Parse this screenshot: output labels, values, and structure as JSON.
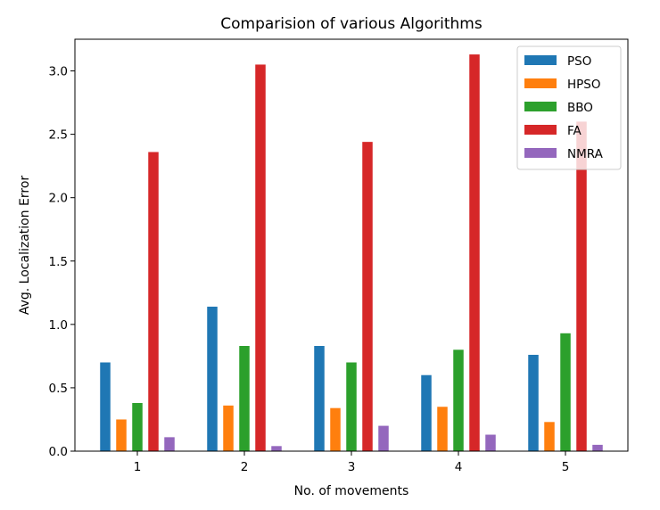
{
  "chart_data": {
    "type": "bar",
    "title": "Comparision of various Algorithms",
    "xlabel": "No. of movements",
    "ylabel": "Avg. Localization Error",
    "categories": [
      "1",
      "2",
      "3",
      "4",
      "5"
    ],
    "ylim": [
      0,
      3.25
    ],
    "yticks": [
      "0.0",
      "0.5",
      "1.0",
      "1.5",
      "2.0",
      "2.5",
      "3.0"
    ],
    "legend_position": "top-right",
    "grid": false,
    "series": [
      {
        "name": "PSO",
        "color": "#1f77b4",
        "values": [
          0.7,
          1.14,
          0.83,
          0.6,
          0.76
        ]
      },
      {
        "name": "HPSO",
        "color": "#ff7f0e",
        "values": [
          0.25,
          0.36,
          0.34,
          0.35,
          0.23
        ]
      },
      {
        "name": "BBO",
        "color": "#2ca02c",
        "values": [
          0.38,
          0.83,
          0.7,
          0.8,
          0.93
        ]
      },
      {
        "name": "FA",
        "color": "#d62728",
        "values": [
          2.36,
          3.05,
          2.44,
          3.13,
          2.6
        ]
      },
      {
        "name": "NMRA",
        "color": "#9467bd",
        "values": [
          0.11,
          0.04,
          0.2,
          0.13,
          0.05
        ]
      }
    ]
  }
}
